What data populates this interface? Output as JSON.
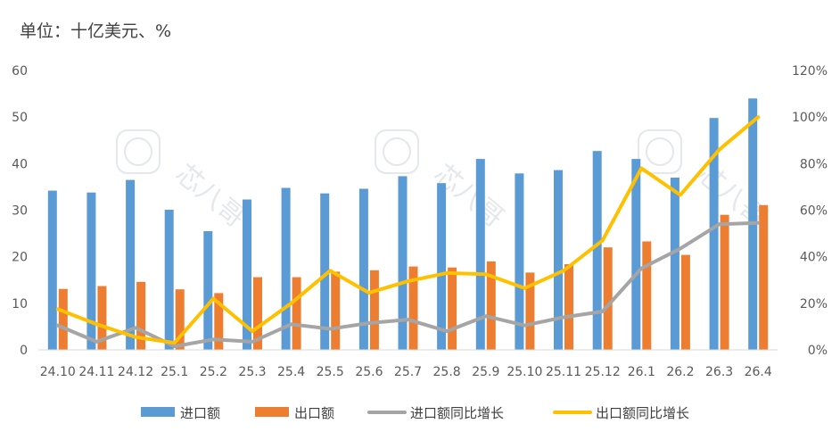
{
  "unit_title": "单位：十亿美元、%",
  "watermark_text": "芯八哥",
  "colors": {
    "import_bar": "#5B9BD5",
    "export_bar": "#ED7D31",
    "import_yoy_line": "#A5A5A5",
    "export_yoy_line": "#FFC000",
    "axis": "#D9D9D9",
    "watermark": "#E4E7EB"
  },
  "chart_data": {
    "type": "bar+line",
    "title": "",
    "categories": [
      "24.10",
      "24.11",
      "24.12",
      "25.1",
      "25.2",
      "25.3",
      "25.4",
      "25.5",
      "25.6",
      "25.7",
      "25.8",
      "25.9",
      "25.10",
      "25.11",
      "25.12",
      "26.1",
      "26.2",
      "26.3",
      "26.4"
    ],
    "left_axis": {
      "min": 0,
      "max": 60,
      "step": 10,
      "ticks": [
        "0",
        "10",
        "20",
        "30",
        "40",
        "50",
        "60"
      ]
    },
    "right_axis": {
      "min": 0,
      "max": 120,
      "step": 20,
      "ticks": [
        "0%",
        "20%",
        "40%",
        "60%",
        "80%",
        "100%",
        "120%"
      ]
    },
    "grid": false,
    "legend_position": "bottom",
    "bar_series": [
      {
        "name": "进口额",
        "values": [
          34.2,
          33.8,
          36.5,
          30.1,
          25.5,
          32.3,
          34.8,
          33.6,
          34.6,
          37.3,
          35.8,
          41.0,
          37.9,
          38.6,
          42.7,
          41.0,
          37.0,
          49.8,
          54.0
        ]
      },
      {
        "name": "出口额",
        "values": [
          13.1,
          13.7,
          14.6,
          13.0,
          12.2,
          15.6,
          15.6,
          16.8,
          17.1,
          17.9,
          17.7,
          19.0,
          16.6,
          18.4,
          22.0,
          23.3,
          20.4,
          29.0,
          31.1
        ]
      }
    ],
    "line_series": [
      {
        "name": "进口额同比增长",
        "axis": "right",
        "values": [
          10.5,
          3.5,
          9.5,
          1.5,
          4.5,
          3.5,
          11.0,
          9.0,
          11.5,
          13.0,
          8.0,
          14.5,
          10.5,
          14.0,
          16.5,
          35.0,
          43.5,
          54.0,
          54.5
        ]
      },
      {
        "name": "出口额同比增长",
        "axis": "right",
        "values": [
          17.5,
          11.0,
          5.5,
          3.0,
          22.0,
          8.0,
          20.0,
          34.0,
          24.5,
          29.5,
          33.0,
          32.5,
          26.5,
          34.0,
          47.0,
          78.0,
          66.5,
          86.0,
          100.0
        ]
      }
    ]
  }
}
